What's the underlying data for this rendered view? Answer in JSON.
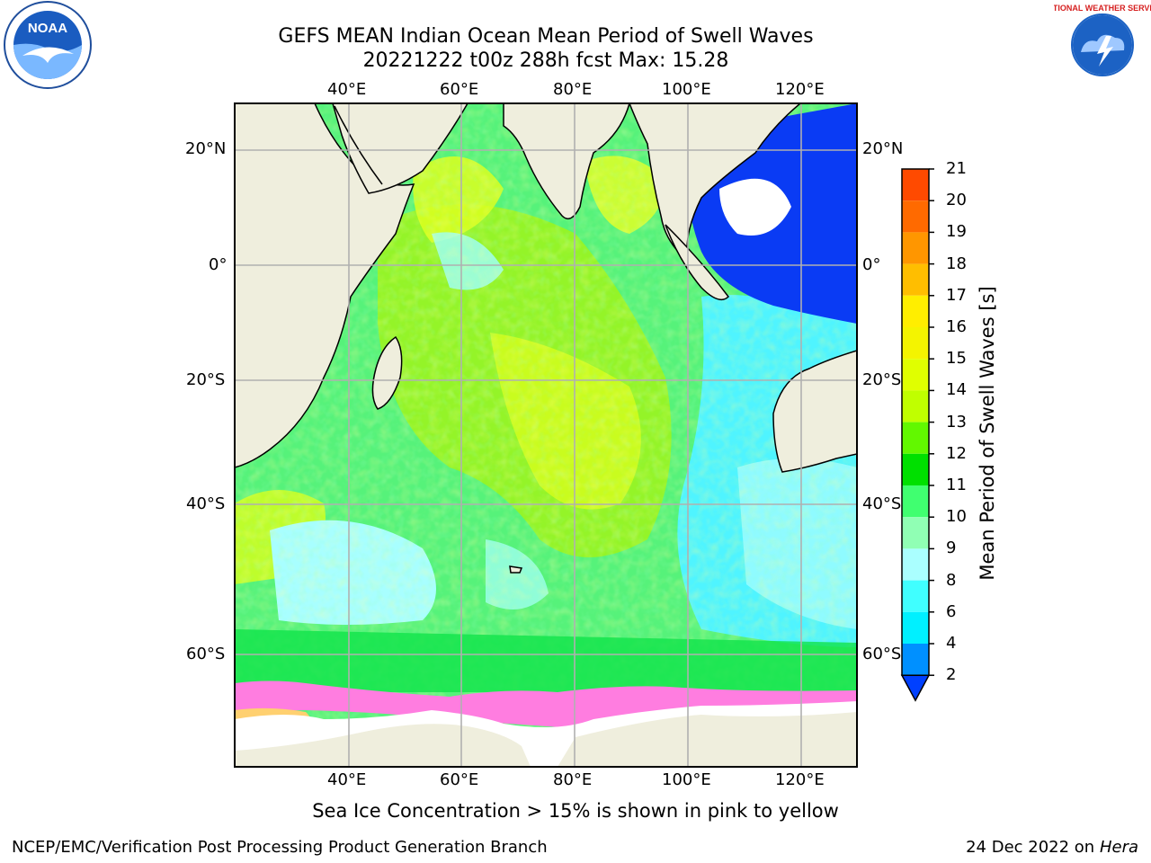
{
  "header": {
    "title_line1": "GEFS MEAN Indian Ocean Mean Period of Swell Waves",
    "title_line2": "20221222 t00z 288h fcst   Max: 15.28"
  },
  "logos": {
    "left": "NOAA",
    "right": "NATIONAL WEATHER SERVICE"
  },
  "map": {
    "lon_labels": [
      "40°E",
      "60°E",
      "80°E",
      "100°E",
      "120°E"
    ],
    "lat_labels_left": [
      "20°N",
      "0°",
      "20°S",
      "40°S",
      "60°S"
    ],
    "lat_labels_right": [
      "20°N",
      "0°",
      "20°S",
      "40°S",
      "60°S"
    ]
  },
  "colorbar": {
    "label": "Mean Period of Swell Waves [s]",
    "ticks": [
      "21",
      "20",
      "19",
      "18",
      "17",
      "16",
      "15",
      "14",
      "13",
      "12",
      "11",
      "10",
      "9",
      "8",
      "6",
      "4",
      "2"
    ],
    "colors": [
      "#ff0000",
      "#ff2a00",
      "#ff4a00",
      "#ff6a00",
      "#ff9600",
      "#ffbe00",
      "#ffee00",
      "#f4f400",
      "#e0ff00",
      "#c0ff00",
      "#62f800",
      "#00e000",
      "#40ff70",
      "#90ffb4",
      "#aaffff",
      "#40ffff",
      "#00f0ff",
      "#0090ff",
      "#0040ff"
    ]
  },
  "note": "Sea Ice Concentration > 15% is shown in pink to yellow",
  "footer": {
    "left": "NCEP/EMC/Verification Post Processing Product Generation Branch",
    "right_prefix": "24 Dec 2022 on",
    "right_host": "Hera"
  }
}
